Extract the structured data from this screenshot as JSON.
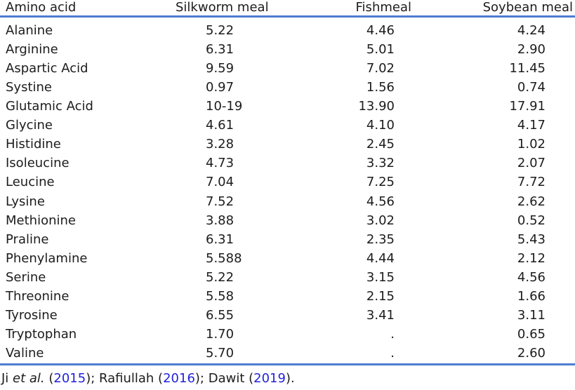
{
  "table": {
    "columns": [
      "Amino acid",
      "Silkworm meal",
      "Fishmeal",
      "Soybean meal"
    ],
    "rows": [
      {
        "name": "Alanine",
        "silkworm": "5.22",
        "fishmeal": "4.46",
        "soybean": "4.24"
      },
      {
        "name": "Arginine",
        "silkworm": "6.31",
        "fishmeal": "5.01",
        "soybean": "2.90"
      },
      {
        "name": "Aspartic Acid",
        "silkworm": "9.59",
        "fishmeal": "7.02",
        "soybean": "11.45"
      },
      {
        "name": "Systine",
        "silkworm": "0.97",
        "fishmeal": "1.56",
        "soybean": "0.74"
      },
      {
        "name": "Glutamic Acid",
        "silkworm": "10-19",
        "fishmeal": "13.90",
        "soybean": "17.91"
      },
      {
        "name": "Glycine",
        "silkworm": "4.61",
        "fishmeal": "4.10",
        "soybean": "4.17"
      },
      {
        "name": "Histidine",
        "silkworm": "3.28",
        "fishmeal": "2.45",
        "soybean": "1.02"
      },
      {
        "name": "Isoleucine",
        "silkworm": "4.73",
        "fishmeal": "3.32",
        "soybean": "2.07"
      },
      {
        "name": "Leucine",
        "silkworm": "7.04",
        "fishmeal": "7.25",
        "soybean": "7.72"
      },
      {
        "name": "Lysine",
        "silkworm": "7.52",
        "fishmeal": "4.56",
        "soybean": "2.62"
      },
      {
        "name": "Methionine",
        "silkworm": "3.88",
        "fishmeal": "3.02",
        "soybean": "0.52"
      },
      {
        "name": "Praline",
        "silkworm": "6.31",
        "fishmeal": "2.35",
        "soybean": "5.43"
      },
      {
        "name": "Phenylamine",
        "silkworm": "5.588",
        "fishmeal": "4.44",
        "soybean": "2.12"
      },
      {
        "name": "Serine",
        "silkworm": "5.22",
        "fishmeal": "3.15",
        "soybean": "4.56"
      },
      {
        "name": "Threonine",
        "silkworm": "5.58",
        "fishmeal": "2.15",
        "soybean": "1.66"
      },
      {
        "name": "Tyrosine",
        "silkworm": "6.55",
        "fishmeal": "3.41",
        "soybean": "3.11"
      },
      {
        "name": "Tryptophan",
        "silkworm": "1.70",
        "fishmeal": ".",
        "soybean": "0.65"
      },
      {
        "name": "Valine",
        "silkworm": "5.70",
        "fishmeal": ".",
        "soybean": "2.60"
      }
    ]
  },
  "footer": {
    "pre": "Ji ",
    "etal": "et al.",
    "open1": " (",
    "year1": "2015",
    "mid1": "); Rafiullah (",
    "year2": "2016",
    "mid2": "); Dawit (",
    "year3": "2019",
    "end": ")."
  },
  "colors": {
    "rule_blue": "#4f7cd1",
    "citation_link_blue": "#2222dd",
    "text": "#1c1c1c"
  }
}
